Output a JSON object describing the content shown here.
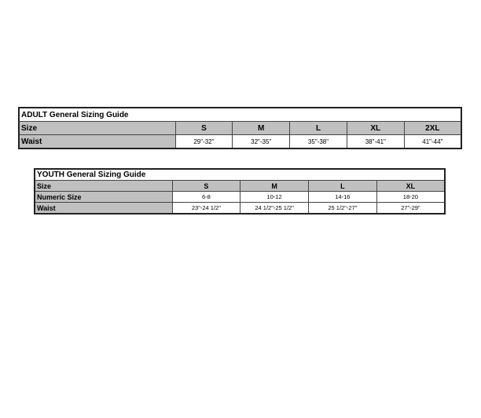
{
  "adult": {
    "title": "ADULT General Sizing Guide",
    "size_label": "Size",
    "sizes": [
      "S",
      "M",
      "L",
      "XL",
      "2XL"
    ],
    "waist_label": "Waist",
    "waists": [
      "29\"-32\"",
      "32\"-35\"",
      "35\"-38\"",
      "38\"-41\"",
      "41\"-44\""
    ]
  },
  "youth": {
    "title": "YOUTH General Sizing Guide",
    "size_label": "Size",
    "sizes": [
      "S",
      "M",
      "L",
      "XL"
    ],
    "numeric_label": "Numeric Size",
    "numerics": [
      "6-8",
      "10-12",
      "14-16",
      "18-20"
    ],
    "waist_label": "Waist",
    "waists": [
      "23\"-24 1/2\"",
      "24 1/2\"-25 1/2\"",
      "25 1/2\"-27\"",
      "27\"-29\""
    ]
  }
}
